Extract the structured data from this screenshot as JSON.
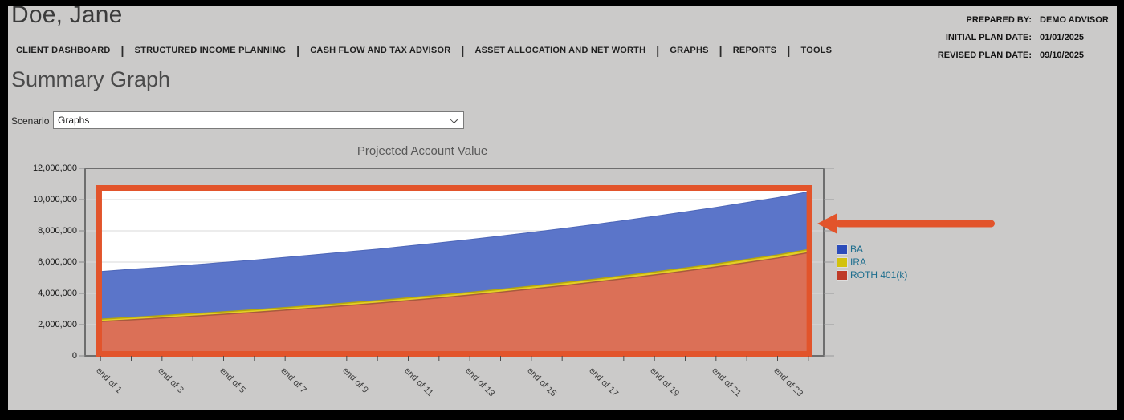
{
  "header": {
    "client_name": "Doe, Jane",
    "info": [
      {
        "label": "PREPARED BY:",
        "value": "DEMO ADVISOR"
      },
      {
        "label": "INITIAL PLAN DATE:",
        "value": "01/01/2025"
      },
      {
        "label": "REVISED PLAN DATE:",
        "value": "09/10/2025"
      }
    ]
  },
  "nav": {
    "items": [
      "CLIENT DASHBOARD",
      "STRUCTURED INCOME PLANNING",
      "CASH FLOW AND TAX ADVISOR",
      "ASSET ALLOCATION AND NET WORTH",
      "GRAPHS",
      "REPORTS",
      "TOOLS"
    ]
  },
  "page": {
    "title": "Summary Graph"
  },
  "scenario": {
    "label": "Scenario",
    "selected": "Graphs"
  },
  "chart_data": {
    "type": "area",
    "stacked": true,
    "title": "Projected Account Value",
    "ylim": [
      0,
      12000000
    ],
    "y_tick_interval": 2000000,
    "y_tick_labels": [
      "12,000,000",
      "10,000,000",
      "8,000,000",
      "6,000,000",
      "4,000,000",
      "2,000,000",
      "0"
    ],
    "x_tick_labels": [
      "end of 1",
      "end of 3",
      "end of 5",
      "end of 7",
      "end of 9",
      "end of 11",
      "end of 13",
      "end of 15",
      "end of 17",
      "end of 19",
      "end of 21",
      "end of 23"
    ],
    "grid": true,
    "legend_position": "right",
    "series": [
      {
        "name": "ROTH 401(k)",
        "fill": "#db7057",
        "edge": "#a85a3e",
        "legend_swatch": "#bf3b28",
        "values": [
          2200000,
          2310000,
          2420000,
          2540000,
          2660000,
          2790000,
          2930000,
          3070000,
          3220000,
          3370000,
          3540000,
          3710000,
          3890000,
          4080000,
          4280000,
          4490000,
          4710000,
          4940000,
          5180000,
          5430000,
          5690000,
          5970000,
          6260000,
          6600000
        ]
      },
      {
        "name": "IRA",
        "fill": "#e3cf25",
        "edge": "#b5a70c",
        "legend_swatch": "#d3c20d",
        "values": [
          150000,
          152000,
          154000,
          156000,
          158000,
          160000,
          162000,
          164000,
          166000,
          168000,
          170000,
          172000,
          174000,
          177000,
          179000,
          181000,
          183000,
          186000,
          188000,
          190000,
          193000,
          195000,
          198000,
          200000
        ]
      },
      {
        "name": "BA",
        "fill": "#5b75c9",
        "edge": "#4d66b8",
        "legend_swatch": "#2c4cba",
        "values": [
          3050000,
          3080000,
          3100000,
          3130000,
          3160000,
          3180000,
          3210000,
          3240000,
          3270000,
          3290000,
          3320000,
          3350000,
          3380000,
          3410000,
          3440000,
          3470000,
          3500000,
          3530000,
          3560000,
          3590000,
          3620000,
          3650000,
          3670000,
          3700000
        ]
      }
    ],
    "legend": [
      {
        "label": "BA",
        "swatch": "#2c4cba"
      },
      {
        "label": "IRA",
        "swatch": "#d3c20d"
      },
      {
        "label": "ROTH 401(k)",
        "swatch": "#bf3b28"
      }
    ],
    "colors": {
      "plot_margin_bg": "#c9c8c7",
      "plot_data_bg": "#ffffff",
      "gridline": "#d9d9d9",
      "frame": "#6e6e6e",
      "tick": "#6a6a6a",
      "annotation_orange": "#e2542b"
    }
  },
  "annotations": {
    "highlight_box": "orange rectangle around plotted data",
    "arrow": "orange arrow pointing left at chart right edge"
  }
}
